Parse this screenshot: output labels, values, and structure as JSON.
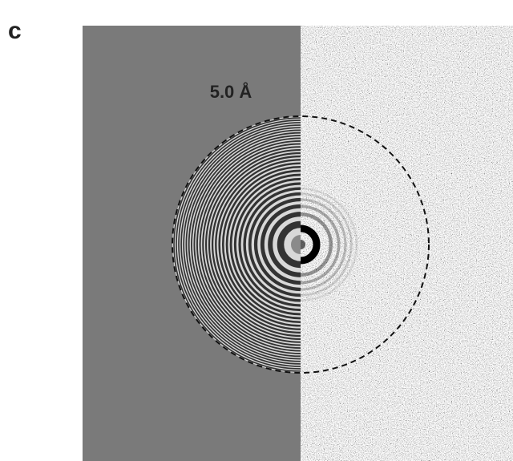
{
  "panel_label": "c",
  "resolution_label": "5.0 Å"
}
